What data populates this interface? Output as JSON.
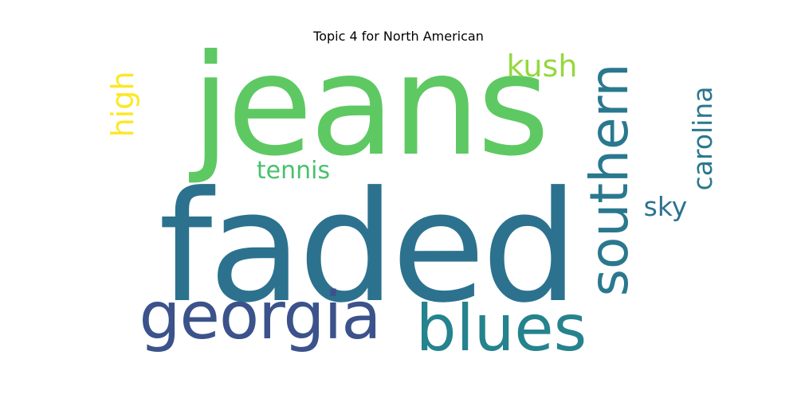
{
  "title": "Topic 4 for North American",
  "words": [
    {
      "text": "jeans",
      "color": "#5ec962"
    },
    {
      "text": "faded",
      "color": "#2c728e"
    },
    {
      "text": "southern",
      "color": "#2a788e"
    },
    {
      "text": "georgia",
      "color": "#3b528b"
    },
    {
      "text": "blues",
      "color": "#25838e"
    },
    {
      "text": "kush",
      "color": "#95d840"
    },
    {
      "text": "high",
      "color": "#fde725"
    },
    {
      "text": "tennis",
      "color": "#4ac16d"
    },
    {
      "text": "carolina",
      "color": "#2a788e"
    },
    {
      "text": "sky",
      "color": "#2c728e"
    }
  ]
}
